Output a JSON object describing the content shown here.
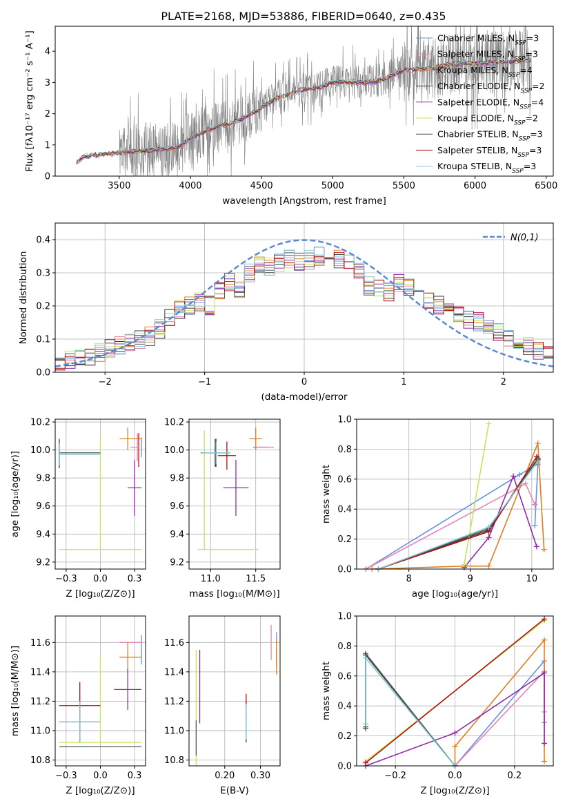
{
  "figure": {
    "title": "PLATE=2168, MJD=53886, FIBERID=0640, z=0.435"
  },
  "colors": {
    "chabrier_miles": "#6a8fdb",
    "salpeter_miles": "#e384b8",
    "kroupa_miles": "#e07d20",
    "chabrier_elodie": "#3a3a3a",
    "salpeter_elodie": "#8e2aa8",
    "kroupa_elodie": "#c8e35c",
    "chabrier_stelib": "#555555",
    "salpeter_stelib": "#b01010",
    "kroupa_stelib": "#7fc8d4",
    "data": "#808080",
    "gaussian": "#5b87d6",
    "grid": "#b0b0b0"
  },
  "legend_models": [
    "Chabrier MILES, N_SSP=3",
    "Salpeter MILES, N_SSP=3",
    "Kroupa MILES, N_SSP=4",
    "Chabrier ELODIE, N_SSP=2",
    "Salpeter ELODIE, N_SSP=4",
    "Kroupa ELODIE, N_SSP=2",
    "Chabrier STELIB, N_SSP=3",
    "Salpeter STELIB, N_SSP=3",
    "Kroupa STELIB, N_SSP=3"
  ],
  "chart_data": [
    {
      "type": "line",
      "id": "spectrum",
      "xlabel": "wavelength [Angstrom, rest frame]",
      "ylabel": "Flux [f_λ 10^-17 erg cm^-2 s^-1 A^-1]",
      "xlim": [
        3050,
        6550
      ],
      "ylim": [
        0,
        4.8
      ],
      "xticks": [
        3500,
        4000,
        4500,
        5000,
        5500,
        6000,
        6500
      ],
      "yticks": [
        0,
        1,
        2,
        3,
        4
      ],
      "grid": false,
      "legend": "right",
      "continuum": {
        "x": [
          3200,
          3250,
          3300,
          3400,
          3500,
          3600,
          3700,
          3800,
          3900,
          4000,
          4100,
          4200,
          4300,
          4400,
          4500,
          4600,
          4700,
          4800,
          4900,
          5000,
          5100,
          5200,
          5300,
          5400,
          5500,
          5600,
          5700,
          5800,
          5900,
          6000,
          6100,
          6200,
          6300,
          6400
        ],
        "y": [
          0.45,
          0.62,
          0.66,
          0.7,
          0.74,
          0.78,
          0.82,
          0.86,
          0.88,
          1.2,
          1.42,
          1.6,
          1.72,
          1.92,
          2.2,
          2.48,
          2.64,
          2.78,
          2.82,
          3.0,
          3.02,
          3.0,
          3.02,
          3.2,
          3.38,
          3.42,
          3.45,
          3.55,
          3.6,
          3.6,
          3.62,
          3.65,
          3.68,
          3.72
        ]
      }
    },
    {
      "type": "bar",
      "id": "residuals",
      "xlabel": "(data-model)/error",
      "ylabel": "Normed distribution",
      "xlim": [
        -2.5,
        2.5
      ],
      "ylim": [
        0,
        0.45
      ],
      "xticks": [
        -2,
        -1,
        0,
        1,
        2
      ],
      "yticks": [
        0.0,
        0.1,
        0.2,
        0.3,
        0.4
      ],
      "grid": true,
      "legend_label": "N(0,1)",
      "legend": "top-right",
      "bin_edges": [
        -2.5,
        -2.4,
        -2.3,
        -2.2,
        -2.1,
        -2.0,
        -1.9,
        -1.8,
        -1.7,
        -1.6,
        -1.5,
        -1.4,
        -1.3,
        -1.2,
        -1.1,
        -1.0,
        -0.9,
        -0.8,
        -0.7,
        -0.6,
        -0.5,
        -0.4,
        -0.3,
        -0.2,
        -0.1,
        0.0,
        0.1,
        0.2,
        0.3,
        0.4,
        0.5,
        0.6,
        0.7,
        0.8,
        0.9,
        1.0,
        1.1,
        1.2,
        1.3,
        1.4,
        1.5,
        1.6,
        1.7,
        1.8,
        1.9,
        2.0,
        2.1,
        2.2,
        2.3,
        2.4,
        2.5
      ],
      "base": [
        0.035,
        0.04,
        0.045,
        0.05,
        0.06,
        0.07,
        0.08,
        0.09,
        0.1,
        0.11,
        0.13,
        0.16,
        0.19,
        0.2,
        0.21,
        0.2,
        0.24,
        0.27,
        0.25,
        0.3,
        0.33,
        0.32,
        0.33,
        0.34,
        0.33,
        0.34,
        0.35,
        0.36,
        0.34,
        0.33,
        0.3,
        0.26,
        0.25,
        0.24,
        0.27,
        0.26,
        0.24,
        0.22,
        0.2,
        0.19,
        0.18,
        0.16,
        0.15,
        0.13,
        0.12,
        0.1,
        0.09,
        0.08,
        0.065,
        0.055
      ]
    },
    {
      "type": "scatter",
      "id": "age_vs_Z",
      "xlabel": "Z [log10(Z/Z_sun)]",
      "ylabel": "age [log10(age/yr)]",
      "xlim": [
        -0.33,
        0.33
      ],
      "ylim": [
        9.15,
        10.22
      ],
      "xticks": [
        -0.25,
        0.0,
        0.25
      ],
      "yticks": [
        9.2,
        9.4,
        9.6,
        9.8,
        10.0,
        10.2
      ],
      "grid": true,
      "points": [
        {
          "model": 0,
          "x": 0.3,
          "y": 10.02,
          "xerr": [
            0.0,
            0.0
          ],
          "yerr": [
            0.07,
            0.07
          ]
        },
        {
          "model": 1,
          "x": 0.27,
          "y": 10.02,
          "xerr": [
            0.05,
            0.0
          ],
          "yerr": [
            0.1,
            0.1
          ]
        },
        {
          "model": 2,
          "x": 0.2,
          "y": 10.08,
          "xerr": [
            0.06,
            0.1
          ],
          "yerr": [
            0.08,
            0.08
          ]
        },
        {
          "model": 3,
          "x": -0.3,
          "y": 9.97,
          "xerr": [
            0.0,
            0.3
          ],
          "yerr": [
            0.1,
            0.1
          ]
        },
        {
          "model": 4,
          "x": 0.25,
          "y": 9.73,
          "xerr": [
            0.05,
            0.05
          ],
          "yerr": [
            0.2,
            0.2
          ]
        },
        {
          "model": 5,
          "x": 0.0,
          "y": 9.29,
          "xerr": [
            0.3,
            0.3
          ],
          "yerr": [
            0.0,
            0.8
          ]
        },
        {
          "model": 6,
          "x": -0.3,
          "y": 9.98,
          "xerr": [
            0.0,
            0.3
          ],
          "yerr": [
            0.1,
            0.1
          ]
        },
        {
          "model": 7,
          "x": 0.28,
          "y": 10.0,
          "xerr": [
            0.0,
            0.0
          ],
          "yerr": [
            0.12,
            0.12
          ]
        },
        {
          "model": 8,
          "x": -0.3,
          "y": 9.97,
          "xerr": [
            0.0,
            0.3
          ],
          "yerr": [
            0.08,
            0.08
          ]
        }
      ]
    },
    {
      "type": "scatter",
      "id": "age_vs_mass",
      "xlabel": "mass [log10(M/M_sun)]",
      "ylabel": "",
      "xlim": [
        10.76,
        11.77
      ],
      "ylim": [
        9.15,
        10.22
      ],
      "xticks": [
        11.0,
        11.5
      ],
      "yticks": [
        9.2,
        9.4,
        9.6,
        9.8,
        10.0,
        10.2
      ],
      "grid": true,
      "points": [
        {
          "model": 0,
          "x": 11.55,
          "y": 10.02,
          "xerr": [
            0.08,
            0.08
          ],
          "yerr": [
            0.0,
            0.0
          ]
        },
        {
          "model": 1,
          "x": 11.6,
          "y": 10.02,
          "xerr": [
            0.1,
            0.1
          ],
          "yerr": [
            0.0,
            0.0
          ]
        },
        {
          "model": 2,
          "x": 11.5,
          "y": 10.08,
          "xerr": [
            0.07,
            0.07
          ],
          "yerr": [
            0.08,
            0.08
          ]
        },
        {
          "model": 3,
          "x": 11.05,
          "y": 9.98,
          "xerr": [
            0.16,
            0.16
          ],
          "yerr": [
            0.1,
            0.1
          ]
        },
        {
          "model": 4,
          "x": 11.28,
          "y": 9.73,
          "xerr": [
            0.14,
            0.14
          ],
          "yerr": [
            0.2,
            0.2
          ]
        },
        {
          "model": 5,
          "x": 10.93,
          "y": 9.29,
          "xerr": [
            0.07,
            0.6
          ],
          "yerr": [
            0.0,
            0.85
          ]
        },
        {
          "model": 6,
          "x": 11.06,
          "y": 9.98,
          "xerr": [
            0.16,
            0.16
          ],
          "yerr": [
            0.1,
            0.1
          ]
        },
        {
          "model": 7,
          "x": 11.18,
          "y": 9.96,
          "xerr": [
            0.1,
            0.1
          ],
          "yerr": [
            0.1,
            0.1
          ]
        },
        {
          "model": 8,
          "x": 11.06,
          "y": 9.98,
          "xerr": [
            0.16,
            0.16
          ],
          "yerr": [
            0.08,
            0.08
          ]
        }
      ]
    },
    {
      "type": "line",
      "id": "massweight_vs_age",
      "xlabel": "age [log10(age/yr)]",
      "ylabel": "mass weight",
      "xlim": [
        7.15,
        10.35
      ],
      "ylim": [
        0.0,
        1.0
      ],
      "xticks": [
        8,
        9,
        10
      ],
      "yticks": [
        0.0,
        0.2,
        0.4,
        0.6,
        0.8,
        1.0
      ],
      "grid": true,
      "series": [
        {
          "model": 0,
          "x": [
            7.3,
            9.8,
            10.1,
            10.05
          ],
          "y": [
            0.0,
            0.63,
            0.7,
            0.29
          ]
        },
        {
          "model": 1,
          "x": [
            7.3,
            9.9,
            10.05
          ],
          "y": [
            0.0,
            0.57,
            0.43
          ]
        },
        {
          "model": 2,
          "x": [
            7.4,
            8.9,
            9.3,
            10.1,
            10.2
          ],
          "y": [
            0.0,
            0.02,
            0.02,
            0.84,
            0.13
          ]
        },
        {
          "model": 3,
          "x": [
            7.5,
            9.3,
            10.1
          ],
          "y": [
            0.0,
            0.26,
            0.74
          ]
        },
        {
          "model": 4,
          "x": [
            8.9,
            9.3,
            9.7,
            10.08
          ],
          "y": [
            0.01,
            0.21,
            0.62,
            0.15
          ]
        },
        {
          "model": 5,
          "x": [
            8.9,
            9.3
          ],
          "y": [
            0.03,
            0.97
          ]
        },
        {
          "model": 6,
          "x": [
            7.5,
            9.3,
            10.1
          ],
          "y": [
            0.0,
            0.27,
            0.73
          ]
        },
        {
          "model": 7,
          "x": [
            7.5,
            9.3,
            10.08
          ],
          "y": [
            0.0,
            0.25,
            0.75
          ]
        },
        {
          "model": 8,
          "x": [
            7.5,
            9.3,
            10.1
          ],
          "y": [
            0.0,
            0.28,
            0.72
          ]
        }
      ]
    },
    {
      "type": "scatter",
      "id": "mass_vs_Z",
      "xlabel": "Z [log10(Z/Z_sun)]",
      "ylabel": "mass [log10(M/M_sun)]",
      "xlim": [
        -0.33,
        0.33
      ],
      "ylim": [
        10.76,
        11.78
      ],
      "xticks": [
        -0.25,
        0.0,
        0.25
      ],
      "yticks": [
        10.8,
        11.0,
        11.2,
        11.4,
        11.6
      ],
      "grid": true,
      "points": [
        {
          "model": 0,
          "x": 0.3,
          "y": 11.55,
          "xerr": [
            0.0,
            0.0
          ],
          "yerr": [
            0.1,
            0.1
          ]
        },
        {
          "model": 1,
          "x": 0.22,
          "y": 11.6,
          "xerr": [
            0.08,
            0.08
          ],
          "yerr": [
            0.0,
            0.0
          ]
        },
        {
          "model": 2,
          "x": 0.2,
          "y": 11.5,
          "xerr": [
            0.06,
            0.1
          ],
          "yerr": [
            0.1,
            0.1
          ]
        },
        {
          "model": 3,
          "x": -0.15,
          "y": 11.06,
          "xerr": [
            0.15,
            0.15
          ],
          "yerr": [
            0.14,
            0.14
          ]
        },
        {
          "model": 4,
          "x": 0.2,
          "y": 11.28,
          "xerr": [
            0.1,
            0.1
          ],
          "yerr": [
            0.14,
            0.14
          ]
        },
        {
          "model": 5,
          "x": 0.0,
          "y": 10.92,
          "xerr": [
            0.3,
            0.3
          ],
          "yerr": [
            0.0,
            0.6
          ]
        },
        {
          "model": 6,
          "x": 0.0,
          "y": 10.89,
          "xerr": [
            0.3,
            0.3
          ],
          "yerr": [
            0.0,
            0.0
          ]
        },
        {
          "model": 7,
          "x": -0.15,
          "y": 11.17,
          "xerr": [
            0.15,
            0.15
          ],
          "yerr": [
            0.16,
            0.16
          ]
        },
        {
          "model": 8,
          "x": -0.15,
          "y": 11.06,
          "xerr": [
            0.15,
            0.15
          ],
          "yerr": [
            0.14,
            0.14
          ]
        }
      ]
    },
    {
      "type": "scatter",
      "id": "mass_vs_ebv",
      "xlabel": "E(B-V)",
      "ylabel": "",
      "xlim": [
        0.1,
        0.355
      ],
      "ylim": [
        10.76,
        11.78
      ],
      "xticks": [
        0.2,
        0.3
      ],
      "yticks": [
        10.8,
        11.0,
        11.2,
        11.4,
        11.6
      ],
      "grid": true,
      "points": [
        {
          "model": 0,
          "x": 0.345,
          "y": 11.55,
          "yerr": [
            0.12,
            0.12
          ]
        },
        {
          "model": 1,
          "x": 0.33,
          "y": 11.6,
          "yerr": [
            0.12,
            0.12
          ]
        },
        {
          "model": 2,
          "x": 0.345,
          "y": 11.5,
          "yerr": [
            0.12,
            0.12
          ]
        },
        {
          "model": 3,
          "x": 0.26,
          "y": 11.06,
          "yerr": [
            0.14,
            0.14
          ]
        },
        {
          "model": 4,
          "x": 0.13,
          "y": 11.3,
          "yerr": [
            0.25,
            0.25
          ]
        },
        {
          "model": 5,
          "x": 0.12,
          "y": 11.15,
          "yerr": [
            0.4,
            0.4
          ]
        },
        {
          "model": 6,
          "x": 0.12,
          "y": 10.95,
          "yerr": [
            0.12,
            0.12
          ]
        },
        {
          "model": 7,
          "x": 0.26,
          "y": 11.17,
          "yerr": [
            0.08,
            0.08
          ]
        },
        {
          "model": 8,
          "x": 0.26,
          "y": 11.06,
          "yerr": [
            0.12,
            0.12
          ]
        }
      ]
    },
    {
      "type": "line",
      "id": "massweight_vs_Z",
      "xlabel": "Z [log10(Z/Z_sun)]",
      "ylabel": "mass weight",
      "xlim": [
        -0.33,
        0.33
      ],
      "ylim": [
        0.0,
        1.0
      ],
      "xticks": [
        -0.2,
        0.0,
        0.2
      ],
      "yticks": [
        0.0,
        0.2,
        0.4,
        0.6,
        0.8,
        1.0
      ],
      "grid": true,
      "series": [
        {
          "model": 0,
          "x": [
            0.0,
            0.3,
            0.3
          ],
          "y": [
            0.0,
            0.7,
            0.29
          ]
        },
        {
          "model": 1,
          "x": [
            0.0,
            0.3,
            0.3
          ],
          "y": [
            0.0,
            0.63,
            0.36
          ]
        },
        {
          "model": 2,
          "x": [
            0.0,
            0.0,
            0.3,
            0.3
          ],
          "y": [
            0.0,
            0.13,
            0.84,
            0.03
          ]
        },
        {
          "model": 3,
          "x": [
            -0.3,
            -0.3,
            0.0
          ],
          "y": [
            0.26,
            0.74,
            0.0
          ]
        },
        {
          "model": 4,
          "x": [
            -0.3,
            0.0,
            0.3,
            0.3
          ],
          "y": [
            0.0,
            0.22,
            0.62,
            0.15
          ]
        },
        {
          "model": 5,
          "x": [
            -0.3,
            0.3
          ],
          "y": [
            0.03,
            0.97
          ]
        },
        {
          "model": 6,
          "x": [
            -0.3,
            -0.3,
            0.0
          ],
          "y": [
            0.25,
            0.75,
            0.0
          ]
        },
        {
          "model": 7,
          "x": [
            -0.3,
            0.3
          ],
          "y": [
            0.02,
            0.98
          ]
        },
        {
          "model": 8,
          "x": [
            -0.3,
            -0.3,
            0.0
          ],
          "y": [
            0.28,
            0.72,
            0.0
          ]
        }
      ]
    }
  ]
}
